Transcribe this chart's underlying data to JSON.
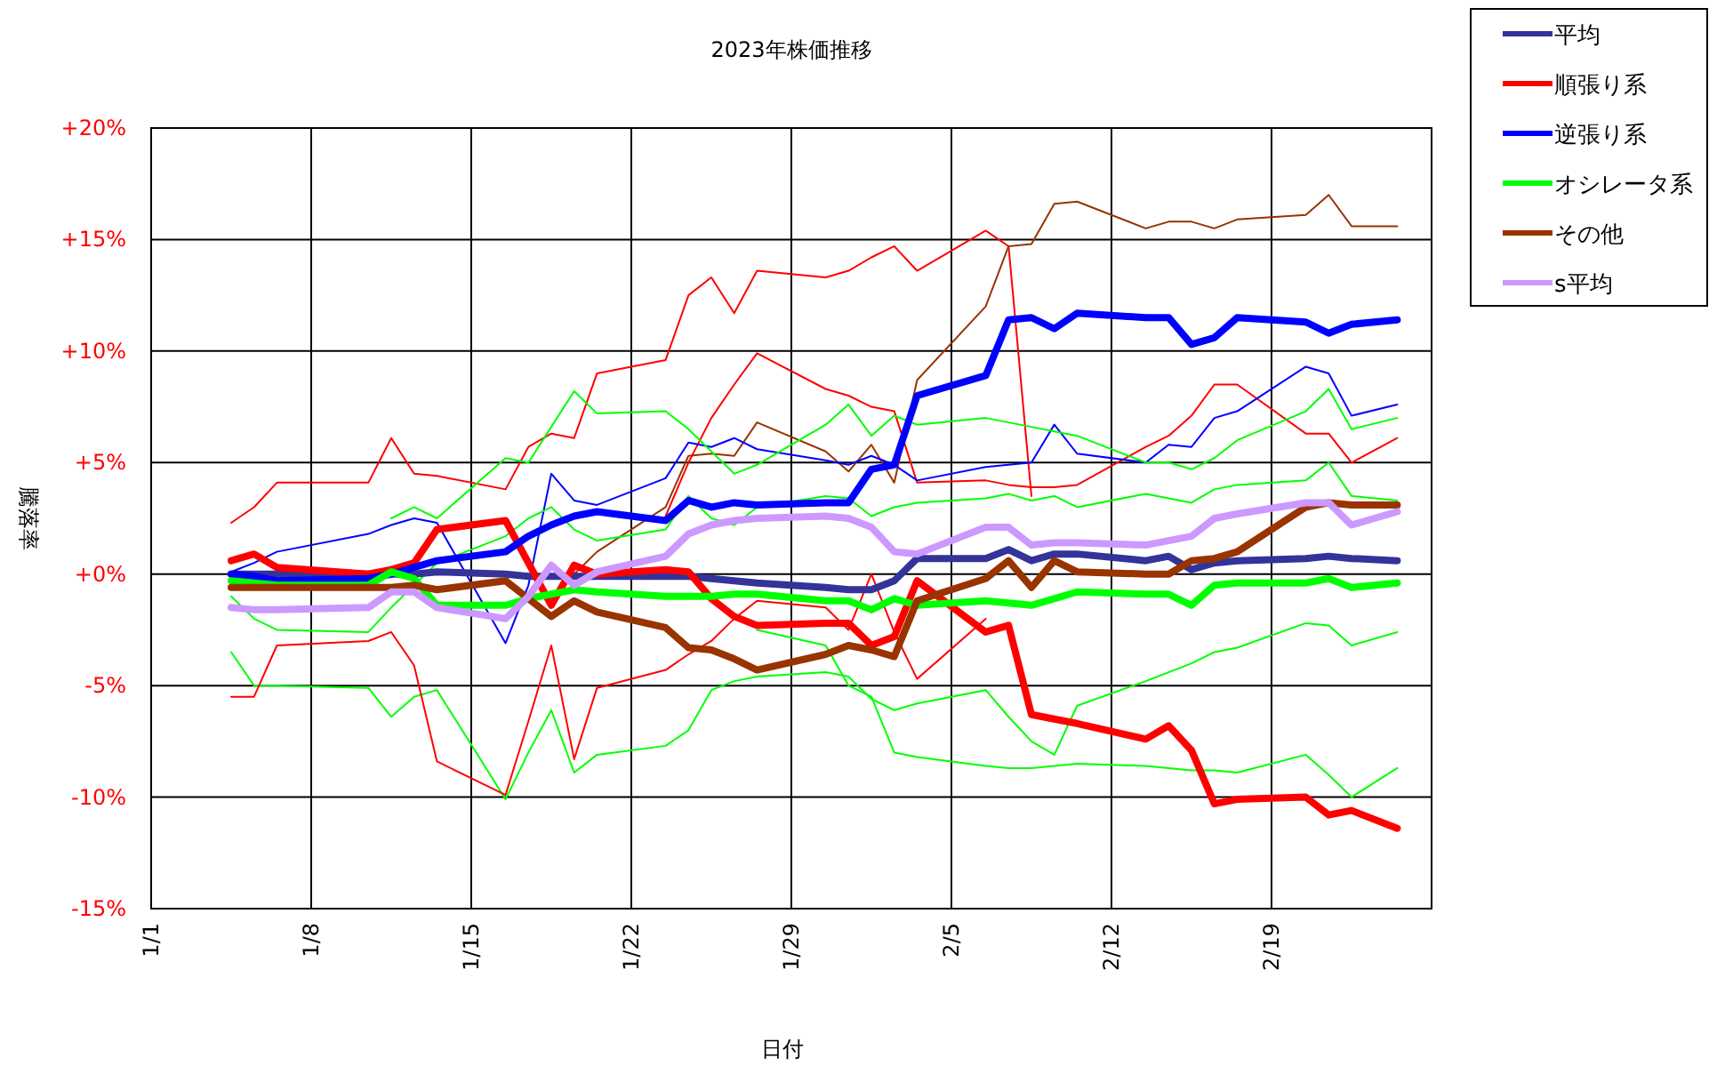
{
  "chart_data": {
    "type": "line",
    "title": "2023年株価推移",
    "xlabel": "日付",
    "ylabel": "騰落率",
    "x": [
      "2023-01-04T12:00",
      "2023-01-05T12:00",
      "2023-01-06T12:00",
      "2023-01-10T12:00",
      "2023-01-11T12:00",
      "2023-01-12T12:00",
      "2023-01-13T12:00",
      "2023-01-16T12:00",
      "2023-01-17T12:00",
      "2023-01-18T12:00",
      "2023-01-19T12:00",
      "2023-01-20T12:00",
      "2023-01-23T12:00",
      "2023-01-24T12:00",
      "2023-01-25T12:00",
      "2023-01-26T12:00",
      "2023-01-27T12:00",
      "2023-01-30T12:00",
      "2023-01-31T12:00",
      "2023-02-01T12:00",
      "2023-02-02T12:00",
      "2023-02-03T12:00",
      "2023-02-06T12:00",
      "2023-02-07T12:00",
      "2023-02-08T12:00",
      "2023-02-09T12:00",
      "2023-02-10T12:00",
      "2023-02-13T12:00",
      "2023-02-14T12:00",
      "2023-02-15T12:00",
      "2023-02-16T12:00",
      "2023-02-17T12:00",
      "2023-02-20T12:00",
      "2023-02-21T12:00",
      "2023-02-22T12:00",
      "2023-02-24T12:00"
    ],
    "xlim": [
      "2023-01-01",
      "2023-02-26"
    ],
    "xticks": [
      {
        "value": "2023-01-01",
        "label": "1/1"
      },
      {
        "value": "2023-01-08",
        "label": "1/8"
      },
      {
        "value": "2023-01-15",
        "label": "1/15"
      },
      {
        "value": "2023-01-22",
        "label": "1/22"
      },
      {
        "value": "2023-01-29",
        "label": "1/29"
      },
      {
        "value": "2023-02-05",
        "label": "2/5"
      },
      {
        "value": "2023-02-12",
        "label": "2/12"
      },
      {
        "value": "2023-02-19",
        "label": "2/19"
      },
      {
        "value": "2023-02-26",
        "label": null
      }
    ],
    "ylim": [
      -15,
      20
    ],
    "yticks": [
      {
        "value": 20,
        "label": "+20%"
      },
      {
        "value": 15,
        "label": "+15%"
      },
      {
        "value": 10,
        "label": "+10%"
      },
      {
        "value": 5,
        "label": "+5%"
      },
      {
        "value": 0,
        "label": "+0%"
      },
      {
        "value": -5,
        "label": "-5%"
      },
      {
        "value": -10,
        "label": "-10%"
      },
      {
        "value": -15,
        "label": "-15%"
      }
    ],
    "grid": true,
    "legend": "top right",
    "series": [
      {
        "color": "#ff0000",
        "values": [
          2.3,
          3.0,
          4.1,
          4.1,
          6.1,
          4.5,
          4.4,
          3.8,
          5.7,
          6.3,
          6.1,
          9.0,
          9.6,
          12.5,
          13.3,
          11.7,
          13.6,
          13.3,
          13.6,
          14.2,
          14.7,
          13.6,
          15.4,
          14.7,
          3.5,
          null,
          null,
          null,
          null,
          null,
          null,
          null,
          null,
          null,
          null,
          null
        ]
      },
      {
        "color": "#993300",
        "values": [
          null,
          null,
          null,
          null,
          null,
          null,
          null,
          null,
          null,
          null,
          0.0,
          1.0,
          3.0,
          5.3,
          5.4,
          5.3,
          6.8,
          5.5,
          4.6,
          5.8,
          4.1,
          8.7,
          12.0,
          14.7,
          14.8,
          16.6,
          16.7,
          15.5,
          15.8,
          15.8,
          15.5,
          15.9,
          16.1,
          17.0,
          15.6,
          15.6
        ]
      },
      {
        "color": "#ff0000",
        "values": [
          null,
          null,
          null,
          null,
          null,
          null,
          null,
          null,
          null,
          null,
          null,
          null,
          2.6,
          5.0,
          7.0,
          8.5,
          9.9,
          8.3,
          8.0,
          7.5,
          7.3,
          4.1,
          4.2,
          4.0,
          3.9,
          3.9,
          4.0,
          5.7,
          6.2,
          7.1,
          8.5,
          8.5,
          6.3,
          6.3,
          5.0,
          6.1
        ]
      },
      {
        "color": "#0000ff",
        "values": [
          0.1,
          0.5,
          1.0,
          1.8,
          2.2,
          2.5,
          2.3,
          -3.1,
          -0.5,
          4.5,
          3.3,
          3.1,
          4.3,
          5.9,
          5.7,
          6.1,
          5.6,
          5.1,
          4.9,
          5.3,
          4.9,
          4.2,
          4.8,
          4.9,
          5.0,
          6.7,
          5.4,
          5.0,
          5.8,
          5.7,
          7.0,
          7.3,
          9.3,
          9.0,
          7.1,
          7.6
        ]
      },
      {
        "color": "#00ff00",
        "values": [
          -3.5,
          -5.0,
          -5.0,
          -5.1,
          -6.4,
          -5.5,
          -5.2,
          -10.1,
          -8.0,
          -6.1,
          -8.9,
          -8.1,
          -7.7,
          -7.0,
          -5.2,
          -4.8,
          -4.6,
          -4.4,
          -4.6,
          -5.6,
          -6.1,
          -5.8,
          -5.2,
          -6.4,
          -7.5,
          -8.1,
          -5.9,
          -4.8,
          -4.4,
          -4.0,
          -3.5,
          -3.3,
          -2.2,
          -2.3,
          -3.2,
          -2.6
        ]
      },
      {
        "color": "#00ff00",
        "values": [
          null,
          null,
          null,
          null,
          null,
          null,
          null,
          null,
          null,
          null,
          null,
          null,
          null,
          null,
          null,
          null,
          -2.5,
          -3.2,
          -5.0,
          -5.5,
          -8.0,
          -8.2,
          -8.6,
          -8.7,
          -8.7,
          -8.6,
          -8.5,
          -8.6,
          -8.7,
          -8.8,
          -8.8,
          -8.9,
          -8.1,
          -9.0,
          -10.0,
          -8.7
        ]
      },
      {
        "color": "#ff0000",
        "values": [
          -5.5,
          -5.5,
          -3.2,
          -3.0,
          -2.6,
          -4.1,
          -8.4,
          -9.9,
          -6.6,
          -3.2,
          -8.3,
          -5.1,
          -4.3,
          -3.6,
          -3.0,
          -2.0,
          -1.2,
          -1.5,
          -2.5,
          0.0,
          -2.6,
          -4.7,
          -2.0,
          null,
          null,
          null,
          null,
          null,
          null,
          null,
          null,
          null,
          null,
          null,
          null,
          null
        ]
      },
      {
        "color": "#00ff00",
        "values": [
          null,
          null,
          null,
          null,
          2.5,
          3.0,
          2.5,
          5.2,
          5.0,
          6.6,
          8.2,
          7.2,
          7.3,
          6.5,
          5.5,
          4.5,
          4.9,
          6.7,
          7.6,
          6.2,
          7.1,
          6.7,
          7.0,
          6.8,
          6.6,
          6.4,
          6.2,
          5.0,
          5.0,
          4.7,
          5.2,
          6.0,
          7.3,
          8.3,
          6.5,
          7.0
        ]
      },
      {
        "color": "#00ff00",
        "values": [
          -1.0,
          -2.0,
          -2.5,
          -2.6,
          -1.5,
          -0.5,
          0.5,
          1.7,
          2.5,
          3.0,
          2.0,
          1.5,
          2.0,
          3.5,
          2.5,
          2.2,
          3.0,
          3.5,
          3.4,
          2.6,
          3.0,
          3.2,
          3.4,
          3.6,
          3.3,
          3.5,
          3.0,
          3.6,
          3.4,
          3.2,
          3.8,
          4.0,
          4.2,
          5.0,
          3.5,
          3.3
        ]
      },
      {
        "name": "平均",
        "color": "#333399",
        "values": [
          0.0,
          0.0,
          0.0,
          0.0,
          0.0,
          0.0,
          0.1,
          0.0,
          -0.1,
          -0.1,
          -0.1,
          -0.1,
          -0.1,
          -0.1,
          -0.2,
          -0.3,
          -0.4,
          -0.6,
          -0.7,
          -0.7,
          -0.3,
          0.7,
          0.7,
          1.1,
          0.6,
          0.9,
          0.9,
          0.6,
          0.8,
          0.2,
          0.5,
          0.6,
          0.7,
          0.8,
          0.7,
          0.6
        ]
      },
      {
        "name": "順張り系",
        "color": "#ff0000",
        "values": [
          0.6,
          0.9,
          0.3,
          0.0,
          0.2,
          0.5,
          2.0,
          2.4,
          0.5,
          -1.4,
          0.4,
          0.0,
          0.2,
          0.1,
          -1.1,
          -1.9,
          -2.3,
          -2.2,
          -2.2,
          -3.2,
          -2.8,
          -0.3,
          -2.6,
          -2.3,
          -6.3,
          -6.5,
          -6.7,
          -7.4,
          -6.8,
          -7.9,
          -10.3,
          -10.1,
          -10.0,
          -10.8,
          -10.6,
          -11.4
        ]
      },
      {
        "name": "逆張り系",
        "color": "#0000ff",
        "values": [
          0.0,
          -0.1,
          -0.3,
          -0.2,
          0.0,
          0.3,
          0.6,
          1.0,
          1.7,
          2.2,
          2.6,
          2.8,
          2.4,
          3.3,
          3.0,
          3.2,
          3.1,
          3.2,
          3.2,
          4.7,
          4.9,
          8.0,
          8.9,
          11.4,
          11.5,
          11.0,
          11.7,
          11.5,
          11.5,
          10.3,
          10.6,
          11.5,
          11.3,
          10.8,
          11.2,
          11.4
        ]
      },
      {
        "name": "オシレータ系",
        "color": "#00ff00",
        "values": [
          -0.3,
          -0.4,
          -0.5,
          -0.5,
          0.1,
          -0.2,
          -1.4,
          -1.4,
          -1.1,
          -0.9,
          -0.7,
          -0.8,
          -1.0,
          -1.0,
          -1.0,
          -0.9,
          -0.9,
          -1.2,
          -1.2,
          -1.6,
          -1.1,
          -1.4,
          -1.2,
          -1.3,
          -1.4,
          -1.1,
          -0.8,
          -0.9,
          -0.9,
          -1.4,
          -0.5,
          -0.4,
          -0.4,
          -0.2,
          -0.6,
          -0.4
        ]
      },
      {
        "name": "その他",
        "color": "#993300",
        "values": [
          -0.6,
          -0.6,
          -0.6,
          -0.6,
          -0.6,
          -0.5,
          -0.7,
          -0.3,
          -1.1,
          -1.9,
          -1.2,
          -1.7,
          -2.4,
          -3.3,
          -3.4,
          -3.8,
          -4.3,
          -3.6,
          -3.2,
          -3.4,
          -3.7,
          -1.2,
          -0.2,
          0.6,
          -0.6,
          0.6,
          0.1,
          0.0,
          0.0,
          0.6,
          0.7,
          1.0,
          3.0,
          3.2,
          3.1,
          3.1
        ]
      },
      {
        "name": "s平均",
        "color": "#cc99ff",
        "values": [
          -1.5,
          -1.6,
          -1.6,
          -1.5,
          -0.8,
          -0.8,
          -1.5,
          -2.0,
          -1.0,
          0.4,
          -0.5,
          0.1,
          0.8,
          1.8,
          2.2,
          2.4,
          2.5,
          2.6,
          2.5,
          2.1,
          1.0,
          0.9,
          2.1,
          2.1,
          1.3,
          1.4,
          1.4,
          1.3,
          1.5,
          1.7,
          2.5,
          2.7,
          3.2,
          3.2,
          2.2,
          2.8
        ]
      }
    ]
  }
}
